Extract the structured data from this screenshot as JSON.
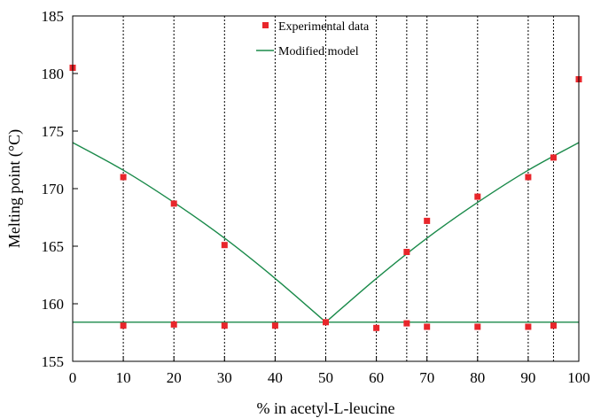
{
  "chart_data": {
    "type": "scatter",
    "title": "",
    "xlabel": "% in acetyl-L-leucine",
    "ylabel": "Melting point (°C)",
    "xlim": [
      0,
      100
    ],
    "ylim": [
      155,
      185
    ],
    "x_ticks": [
      0,
      10,
      20,
      30,
      40,
      50,
      60,
      70,
      80,
      90,
      100
    ],
    "y_ticks": [
      155,
      160,
      165,
      170,
      175,
      180,
      185
    ],
    "vertical_dotted_gridlines": [
      10,
      20,
      30,
      40,
      50,
      60,
      66,
      70,
      80,
      90,
      95
    ],
    "legend_placement": "top-center",
    "series": [
      {
        "name": "Experimental data",
        "kind": "scatter",
        "marker": "square",
        "color": "#e8262b",
        "points": [
          [
            0,
            180.5
          ],
          [
            10,
            171.0
          ],
          [
            20,
            168.7
          ],
          [
            30,
            165.1
          ],
          [
            50,
            158.4
          ],
          [
            66,
            164.5
          ],
          [
            70,
            167.2
          ],
          [
            80,
            169.3
          ],
          [
            90,
            171.0
          ],
          [
            95,
            172.7
          ],
          [
            100,
            179.5
          ],
          [
            10,
            158.1
          ],
          [
            20,
            158.2
          ],
          [
            30,
            158.1
          ],
          [
            40,
            158.1
          ],
          [
            60,
            157.9
          ],
          [
            66,
            158.3
          ],
          [
            70,
            158.0
          ],
          [
            80,
            158.0
          ],
          [
            90,
            158.0
          ],
          [
            95,
            158.1
          ]
        ]
      },
      {
        "name": "Modified model",
        "kind": "line",
        "color": "#1a8a4a",
        "lines": [
          [
            [
              0,
              174.0
            ],
            [
              10,
              171.6
            ],
            [
              20,
              168.8
            ],
            [
              30,
              165.7
            ],
            [
              40,
              162.2
            ],
            [
              50,
              158.4
            ]
          ],
          [
            [
              50,
              158.4
            ],
            [
              60,
              162.2
            ],
            [
              70,
              165.7
            ],
            [
              80,
              168.8
            ],
            [
              90,
              171.6
            ],
            [
              100,
              174.0
            ]
          ],
          [
            [
              0,
              158.4
            ],
            [
              100,
              158.4
            ]
          ]
        ]
      }
    ]
  }
}
